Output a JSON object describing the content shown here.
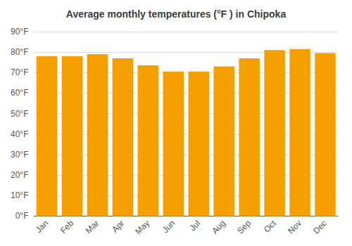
{
  "chart_data": {
    "type": "bar",
    "title": "Average monthly temperatures (°F ) in Chipoka",
    "categories": [
      "Jan",
      "Feb",
      "Mar",
      "Apr",
      "May",
      "Jun",
      "Jul",
      "Aug",
      "Sep",
      "Oct",
      "Nov",
      "Dec"
    ],
    "values": [
      78,
      78,
      79,
      77,
      73.5,
      70.5,
      70.5,
      73,
      77,
      81,
      81.5,
      79.5
    ],
    "color": "#F5A000",
    "ylim": [
      0,
      90
    ],
    "yticks": [
      {
        "value": 0,
        "label": "0°F"
      },
      {
        "value": 10,
        "label": "10°F"
      },
      {
        "value": 20,
        "label": "20°F"
      },
      {
        "value": 30,
        "label": "30°F"
      },
      {
        "value": 40,
        "label": "40°F"
      },
      {
        "value": 50,
        "label": "50°F"
      },
      {
        "value": 60,
        "label": "60°F"
      },
      {
        "value": 70,
        "label": "70°F"
      },
      {
        "value": 80,
        "label": "80°F"
      },
      {
        "value": 90,
        "label": "90°F"
      }
    ],
    "grid": true
  }
}
